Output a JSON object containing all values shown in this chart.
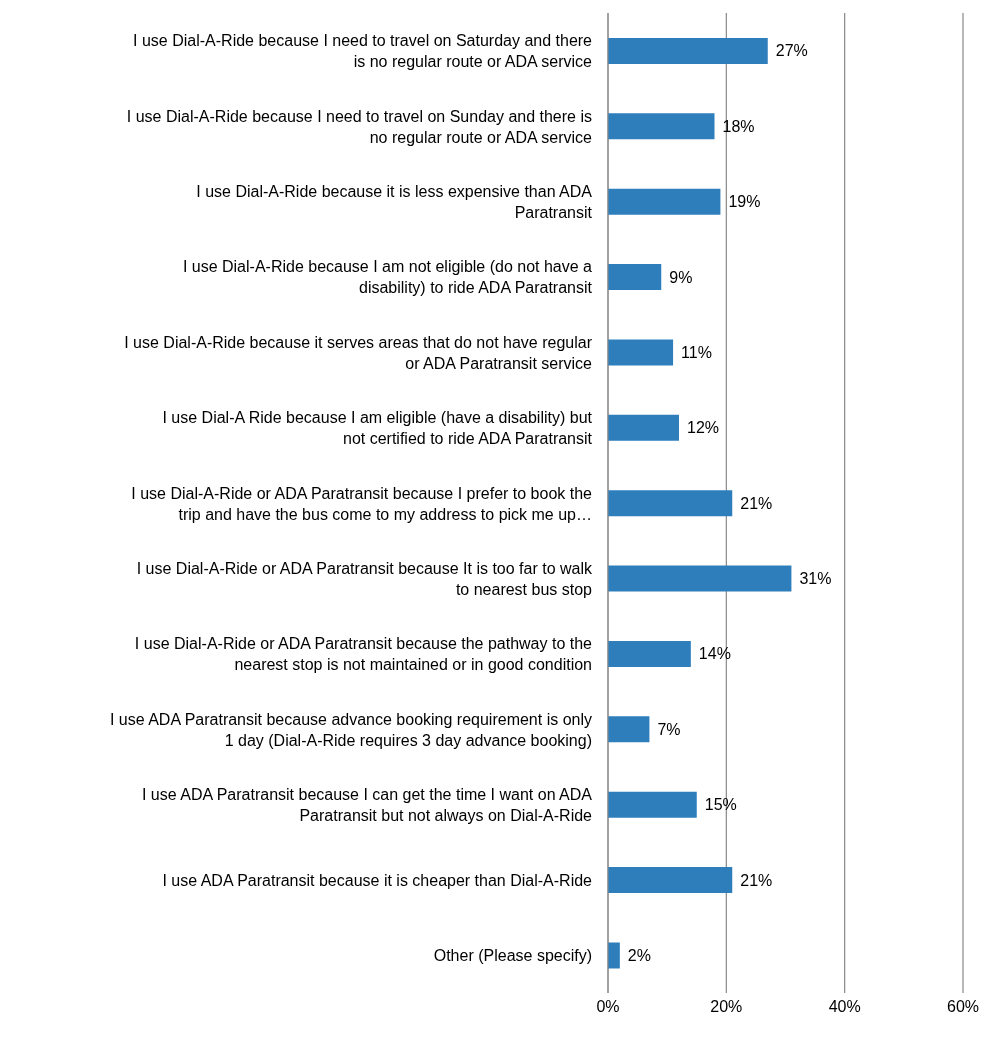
{
  "chart_data": {
    "type": "bar",
    "orientation": "horizontal",
    "categories": [
      "I use Dial-A-Ride because I need to travel on Saturday and there is no regular route or ADA service",
      "I use Dial-A-Ride because I need to travel on Sunday and there is no regular route or ADA service",
      "I use Dial-A-Ride because it is less expensive than ADA Paratransit",
      "I use Dial-A-Ride because I am not eligible (do not have a disability) to ride ADA Paratransit",
      "I use Dial-A-Ride because it serves areas that do not have regular or ADA Paratransit service",
      "I use Dial-A Ride because I am eligible (have a disability) but not certified to ride ADA Paratransit",
      "I use Dial-A-Ride or ADA Paratransit because I prefer to book the trip and have the bus come to my address to pick me up…",
      "I use Dial-A-Ride or ADA Paratransit because It is too far to walk to nearest bus stop",
      "I use Dial-A-Ride or ADA Paratransit because the pathway to the nearest stop is not maintained or in good condition",
      "I use ADA Paratransit because advance booking requirement is only 1 day (Dial-A-Ride requires 3 day advance booking)",
      "I use ADA Paratransit because I can get the time I want on ADA Paratransit but not always on Dial-A-Ride",
      "I use ADA Paratransit because it is cheaper than Dial-A-Ride",
      "Other (Please specify)"
    ],
    "values": [
      27,
      18,
      19,
      9,
      11,
      12,
      21,
      31,
      14,
      7,
      15,
      21,
      2
    ],
    "value_labels": [
      "27%",
      "18%",
      "19%",
      "9%",
      "11%",
      "12%",
      "21%",
      "31%",
      "14%",
      "7%",
      "15%",
      "21%",
      "2%"
    ],
    "color": "#2e7ebc",
    "xlim": [
      0,
      60
    ],
    "xticks": [
      {
        "value": 0,
        "label": "0%"
      },
      {
        "value": 20,
        "label": "20%"
      },
      {
        "value": 40,
        "label": "40%"
      },
      {
        "value": 60,
        "label": "60%"
      }
    ],
    "grid": "x"
  }
}
